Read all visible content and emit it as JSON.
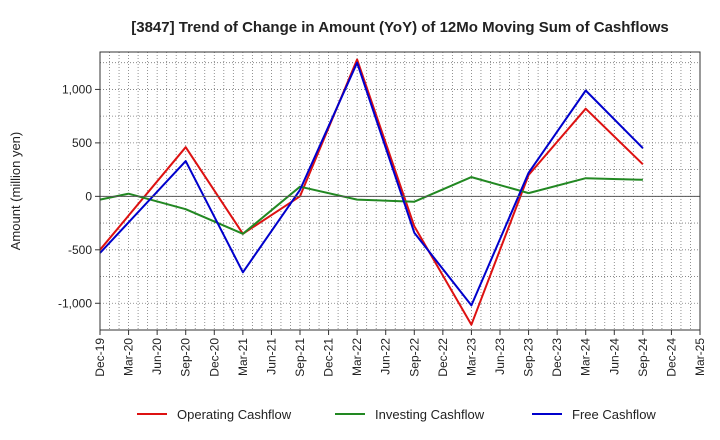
{
  "chart_data": {
    "type": "line",
    "title": "[3847]  Trend of Change in Amount (YoY) of 12Mo Moving Sum of Cashflows",
    "xlabel": "",
    "ylabel": "Amount (million yen)",
    "ylim": [
      -1250,
      1350
    ],
    "yticks": [
      -1000,
      -500,
      0,
      500,
      1000
    ],
    "ytick_labels": [
      "-1,000",
      "-500",
      "0",
      "500",
      "1,000"
    ],
    "grid": true,
    "legend_position": "bottom",
    "categories": [
      "Dec-19",
      "Mar-20",
      "Jun-20",
      "Sep-20",
      "Dec-20",
      "Mar-21",
      "Jun-21",
      "Sep-21",
      "Dec-21",
      "Mar-22",
      "Jun-22",
      "Sep-22",
      "Dec-22",
      "Mar-23",
      "Jun-23",
      "Sep-23",
      "Dec-23",
      "Mar-24",
      "Jun-24",
      "Sep-24",
      "Dec-24",
      "Mar-25"
    ],
    "series": [
      {
        "name": "Operating Cashflow",
        "color": "#dd1111",
        "points": [
          [
            0,
            -500
          ],
          [
            3,
            460
          ],
          [
            5,
            -350
          ],
          [
            7,
            0
          ],
          [
            9,
            1280
          ],
          [
            11,
            -280
          ],
          [
            13,
            -1200
          ],
          [
            15,
            200
          ],
          [
            17,
            820
          ],
          [
            19,
            300
          ]
        ]
      },
      {
        "name": "Investing Cashflow",
        "color": "#228822",
        "points": [
          [
            0,
            -30
          ],
          [
            1,
            25
          ],
          [
            3,
            -120
          ],
          [
            5,
            -350
          ],
          [
            7,
            90
          ],
          [
            9,
            -30
          ],
          [
            11,
            -50
          ],
          [
            13,
            180
          ],
          [
            15,
            30
          ],
          [
            17,
            170
          ],
          [
            19,
            155
          ]
        ]
      },
      {
        "name": "Free Cashflow",
        "color": "#0000cc",
        "points": [
          [
            0,
            -530
          ],
          [
            3,
            330
          ],
          [
            5,
            -710
          ],
          [
            7,
            60
          ],
          [
            9,
            1250
          ],
          [
            11,
            -340
          ],
          [
            13,
            -1020
          ],
          [
            15,
            220
          ],
          [
            17,
            990
          ],
          [
            19,
            450
          ]
        ]
      }
    ]
  }
}
